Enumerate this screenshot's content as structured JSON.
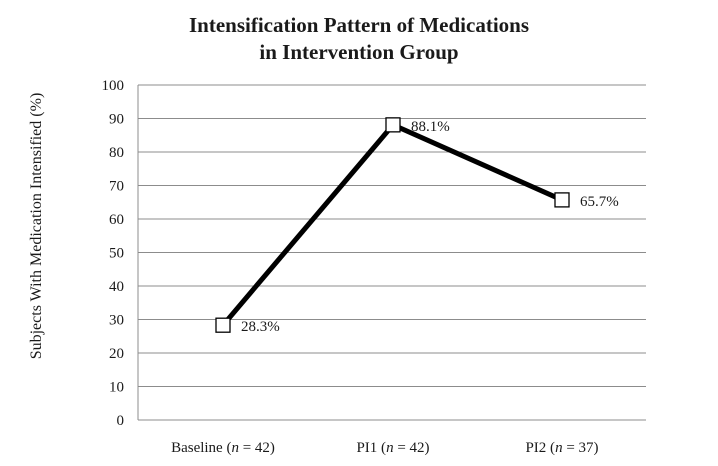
{
  "chart_data": {
    "type": "line",
    "title_lines": [
      "Intensification Pattern of Medications",
      "in Intervention Group"
    ],
    "ylabel": "Subjects With Medication Intensified (%)",
    "xlabel": "",
    "ylim": [
      0,
      100
    ],
    "yticks": [
      0,
      10,
      20,
      30,
      40,
      50,
      60,
      70,
      80,
      90,
      100
    ],
    "grid": true,
    "legend": "none",
    "categories": [
      {
        "name": "Baseline",
        "n_text": "n",
        "suffix": " = 42)"
      },
      {
        "name": "PI1",
        "n_text": "n",
        "suffix": " = 42)"
      },
      {
        "name": "PI2",
        "n_text": "n",
        "suffix": " = 37)"
      }
    ],
    "series": [
      {
        "values": [
          28.3,
          88.1,
          65.7
        ],
        "labels": [
          "28.3%",
          "88.1%",
          "65.7%"
        ],
        "color": "#000000"
      }
    ]
  }
}
